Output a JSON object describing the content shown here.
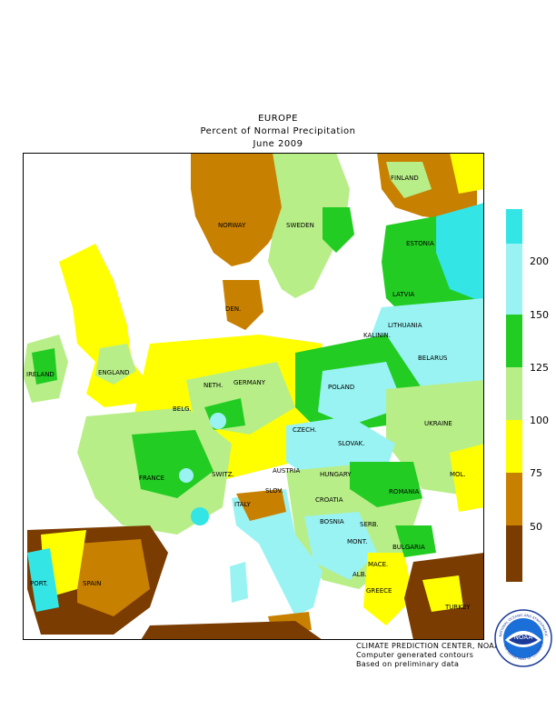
{
  "header": {
    "line1": "EUROPE",
    "line2": "Percent of Normal Precipitation",
    "line3": "June 2009"
  },
  "legend": {
    "colors": {
      "above_200": "#33e5e5",
      "l150_200": "#99f3f3",
      "l125_150": "#22cc22",
      "l100_125": "#b8ee88",
      "l75_100": "#ffff00",
      "l50_75": "#c88000",
      "below_50": "#7a3c00"
    },
    "ticks": [
      "200",
      "150",
      "125",
      "100",
      "75",
      "50"
    ]
  },
  "map": {
    "labels": {
      "norway": "NORWAY",
      "sweden": "SWEDEN",
      "finland": "FINLAND",
      "estonia": "ESTONIA",
      "latvia": "LATVIA",
      "lithuania": "LITHUANIA",
      "kalinin": "KALININ.",
      "belarus": "BELARUS",
      "ireland": "IRELAND",
      "england": "ENGLAND",
      "den": "DEN.",
      "neth": "NETH.",
      "germany": "GERMANY",
      "poland": "POLAND",
      "belg": "BELG.",
      "czech": "CZECH.",
      "slovak": "SLOVAK.",
      "ukraine": "UKRAINE",
      "france": "FRANCE",
      "switz": "SWITZ.",
      "austria": "AUSTRIA",
      "hungary": "HUNGARY",
      "mol": "MOL.",
      "romania": "ROMANIA",
      "slov": "SLOV.",
      "croatia": "CROATIA",
      "italy": "ITALY",
      "bosnia": "BOSNIA",
      "serb": "SERB.",
      "mont": "MONT.",
      "bulgaria": "BULGARIA",
      "mace": "MACE.",
      "alb": "ALB.",
      "greece": "GREECE",
      "turkey": "TURKEY",
      "port": "PORT.",
      "spain": "SPAIN"
    }
  },
  "credits": {
    "line1": "CLIMATE PREDICTION CENTER, NOAA",
    "line2": "Computer generated contours",
    "line3": "Based on preliminary data"
  },
  "logo": {
    "text": "NOAA",
    "ring": "NATIONAL OCEANIC AND ATMOSPHERIC ADMINISTRATION",
    "ring2": "U.S. DEPARTMENT OF COMMERCE"
  }
}
